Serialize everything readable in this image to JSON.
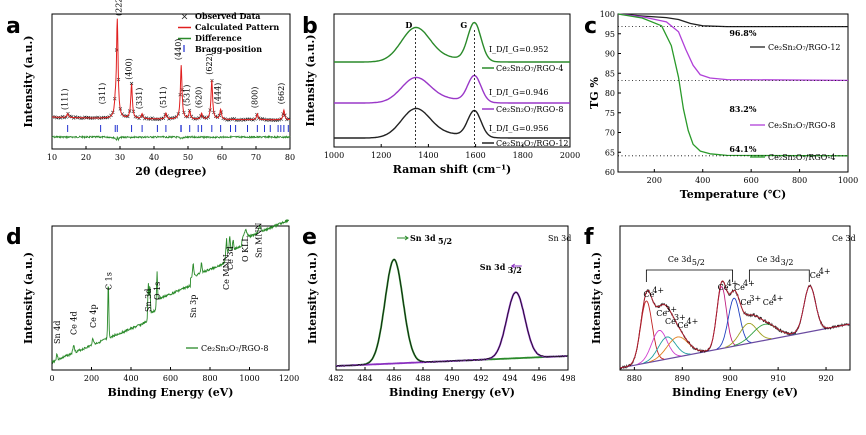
{
  "chart_data": [
    {
      "panel": "a",
      "type": "line",
      "xlabel": "2θ (degree)",
      "ylabel": "Intensity (a.u.)",
      "xlim": [
        10,
        80
      ],
      "xticks": [
        10,
        20,
        30,
        40,
        50,
        60,
        70,
        80
      ],
      "legend": [
        "Observed Data",
        "Calculated Pattern",
        "Difference",
        "Bragg-position"
      ],
      "colors": {
        "observed": "#222222",
        "calculated": "#e02020",
        "difference": "#2a8a2a",
        "bragg": "#2030d0"
      },
      "peaks": [
        {
          "label": "(111)",
          "x": 14.6,
          "y": 0.04
        },
        {
          "label": "(311)",
          "x": 28.6,
          "y": 0.1
        },
        {
          "label": "(222)",
          "x": 29.2,
          "y": 1.0
        },
        {
          "label": "(400)",
          "x": 33.4,
          "y": 0.35
        },
        {
          "label": "(331)",
          "x": 36.5,
          "y": 0.05
        },
        {
          "label": "(511)",
          "x": 43.5,
          "y": 0.06
        },
        {
          "label": "(440)",
          "x": 48.0,
          "y": 0.55
        },
        {
          "label": "(531)",
          "x": 50.5,
          "y": 0.08
        },
        {
          "label": "(620)",
          "x": 54.0,
          "y": 0.06
        },
        {
          "label": "(622)",
          "x": 57.0,
          "y": 0.4
        },
        {
          "label": "(444)",
          "x": 59.6,
          "y": 0.1
        },
        {
          "label": "(800)",
          "x": 70.4,
          "y": 0.06
        },
        {
          "label": "(662)",
          "x": 78.2,
          "y": 0.1
        }
      ],
      "bragg_positions": [
        14.6,
        24.3,
        28.6,
        29.2,
        33.4,
        36.5,
        41.0,
        43.5,
        47.9,
        48.0,
        50.5,
        53.0,
        54.0,
        57.0,
        59.6,
        62.5,
        64.0,
        67.5,
        70.4,
        72.5,
        74.2,
        76.5,
        77.3,
        78.2,
        79.5
      ]
    },
    {
      "panel": "b",
      "type": "line",
      "xlabel": "Raman shift (cm⁻¹)",
      "ylabel": "Intensity (a.u.)",
      "xlim": [
        1000,
        2000
      ],
      "xticks": [
        1000,
        1200,
        1400,
        1600,
        1800,
        2000
      ],
      "band_labels": [
        "D",
        "G"
      ],
      "band_positions": [
        1345,
        1595
      ],
      "series": [
        {
          "name": "Ce₂Sn₂O₇/RGO-4",
          "ratio": "I_D/I_G=0.952",
          "color": "#2a8a2a"
        },
        {
          "name": "Ce₂Sn₂O₇/RGO-8",
          "ratio": "I_D/I_G=0.946",
          "color": "#9a38c8"
        },
        {
          "name": "Ce₂Sn₂O₇/RGO-12",
          "ratio": "I_D/I_G=0.956",
          "color": "#222222"
        }
      ]
    },
    {
      "panel": "c",
      "type": "line",
      "xlabel": "Temperature (℃)",
      "ylabel": "TG %",
      "xlim": [
        50,
        1000
      ],
      "ylim": [
        60,
        100
      ],
      "xticks": [
        200,
        400,
        600,
        800,
        1000
      ],
      "yticks": [
        60,
        65,
        70,
        75,
        80,
        85,
        90,
        95,
        100
      ],
      "series": [
        {
          "name": "Ce₂Sn₂O₇/RGO-12",
          "final": "96.8%",
          "color": "#222222",
          "x": [
            50,
            150,
            250,
            300,
            350,
            400,
            500,
            1000
          ],
          "y": [
            100,
            99.5,
            99.1,
            98.6,
            97.6,
            97.0,
            96.8,
            96.8
          ]
        },
        {
          "name": "Ce₂Sn₂O₇/RGO-8",
          "final": "83.2%",
          "color": "#b040d8",
          "x": [
            50,
            150,
            250,
            300,
            330,
            360,
            390,
            430,
            500,
            1000
          ],
          "y": [
            100,
            99.3,
            98.0,
            95.5,
            91.0,
            87.0,
            84.6,
            83.8,
            83.4,
            83.2
          ]
        },
        {
          "name": "Ce₂Sn₂O₇/RGO-4",
          "final": "64.1%",
          "color": "#2a9a2a",
          "x": [
            50,
            150,
            230,
            270,
            300,
            320,
            340,
            360,
            390,
            430,
            500,
            1000
          ],
          "y": [
            100,
            99.0,
            97.0,
            92.0,
            84.0,
            76.0,
            70.5,
            67.0,
            65.3,
            64.6,
            64.2,
            64.1
          ]
        }
      ]
    },
    {
      "panel": "d",
      "type": "line",
      "xlabel": "Binding Energy (eV)",
      "ylabel": "Intensity (a.u.)",
      "xlim": [
        0,
        1200
      ],
      "xticks": [
        0,
        200,
        400,
        600,
        800,
        1000,
        1200
      ],
      "color": "#2a8a2a",
      "legend": "Ce₂Sn₂O₇/RGO-8",
      "peak_labels": [
        {
          "label": "Sn 4d",
          "x": 25
        },
        {
          "label": "Ce 4d",
          "x": 110
        },
        {
          "label": "Ce 4p",
          "x": 207
        },
        {
          "label": "C 1s",
          "x": 285
        },
        {
          "label": "Sn 3d",
          "x": 487
        },
        {
          "label": "O 1s",
          "x": 531
        },
        {
          "label": "Sn 3p",
          "x": 715
        },
        {
          "label": "Ce MNN",
          "x": 880
        },
        {
          "label": "Ce 3d",
          "x": 900
        },
        {
          "label": "O KLL",
          "x": 978
        },
        {
          "label": "Sn MNN",
          "x": 1045
        }
      ]
    },
    {
      "panel": "e",
      "type": "line",
      "title": "Sn 3d",
      "xlabel": "Binding Energy (eV)",
      "ylabel": "Intensity (a.u.)",
      "xlim": [
        482,
        498
      ],
      "xticks": [
        482,
        484,
        486,
        488,
        490,
        492,
        494,
        496,
        498
      ],
      "peaks": [
        {
          "label": "Sn 3d",
          "sub": "5/2",
          "x": 486.0,
          "color": "#2a8a2a"
        },
        {
          "label": "Sn 3d",
          "sub": "3/2",
          "x": 494.4,
          "color": "#8a30c0"
        }
      ]
    },
    {
      "panel": "f",
      "type": "line",
      "title": "Ce 3d",
      "xlabel": "Binding Energy (eV)",
      "ylabel": "Intensity (a.u.)",
      "xlim": [
        877,
        925
      ],
      "xticks": [
        880,
        890,
        900,
        910,
        920
      ],
      "groups": [
        {
          "label": "Ce 3d",
          "sub": "5/2"
        },
        {
          "label": "Ce 3d",
          "sub": "3/2"
        }
      ],
      "components": [
        {
          "label": "Ce",
          "sup": "4+",
          "x": 882.5,
          "color": "#c02020"
        },
        {
          "label": "Ce",
          "sup": "3+",
          "x": 885.2,
          "color": "#d040d0"
        },
        {
          "label": "Ce",
          "sup": "3+",
          "x": 886.8,
          "color": "#20a0a0"
        },
        {
          "label": "Ce",
          "sup": "4+",
          "x": 889.0,
          "color": "#e08020"
        },
        {
          "label": "Ce",
          "sup": "4+",
          "x": 898.2,
          "color": "#c02080"
        },
        {
          "label": "Ce",
          "sup": "4+",
          "x": 900.8,
          "color": "#2040c0"
        },
        {
          "label": "Ce",
          "sup": "3+",
          "x": 903.8,
          "color": "#a0a020"
        },
        {
          "label": "Ce",
          "sup": "4+",
          "x": 907.2,
          "color": "#30a040"
        },
        {
          "label": "Ce",
          "sup": "4+",
          "x": 916.6,
          "color": "#2040d0"
        }
      ]
    }
  ]
}
